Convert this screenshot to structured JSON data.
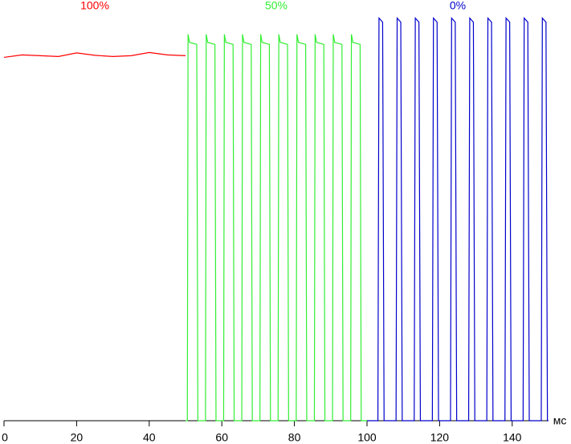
{
  "chart_data": {
    "type": "line",
    "x_label": "мс",
    "xlim": [
      0,
      150
    ],
    "ylim": [
      0,
      100
    ],
    "xticks": [
      0,
      20,
      40,
      60,
      80,
      100,
      120,
      140
    ],
    "series": [
      {
        "name": "100%",
        "color": "#ff0000",
        "x": [
          0,
          5,
          10,
          15,
          20,
          25,
          30,
          35,
          40,
          45,
          50
        ],
        "values": [
          89.8,
          90.4,
          90.2,
          90.0,
          90.9,
          90.3,
          90.0,
          90.2,
          91.0,
          90.4,
          90.2
        ]
      },
      {
        "name": "50%",
        "color": "#33ee33",
        "x": [
          50,
          50.5,
          50.7,
          51.1,
          53.1,
          53.4,
          55.5,
          55.7,
          56.1,
          58.1,
          58.4,
          60.5,
          60.7,
          61.1,
          63.1,
          63.4,
          65.5,
          65.7,
          66.1,
          68.1,
          68.4,
          70.5,
          70.7,
          71.1,
          73.1,
          73.4,
          75.5,
          75.7,
          76.1,
          78.1,
          78.4,
          80.5,
          80.7,
          81.1,
          83.1,
          83.4,
          85.5,
          85.7,
          86.1,
          88.1,
          88.4,
          90.5,
          90.7,
          91.1,
          93.1,
          93.4,
          95.5,
          95.7,
          96.1,
          98.1,
          98.4,
          100
        ],
        "values": [
          0,
          0,
          95.5,
          93.5,
          93,
          0,
          0,
          95.5,
          93.5,
          93,
          0,
          0,
          95.5,
          93.5,
          93,
          0,
          0,
          95.5,
          93.5,
          93,
          0,
          0,
          95.5,
          93.5,
          93,
          0,
          0,
          95.5,
          93.5,
          93,
          0,
          0,
          95.5,
          93.5,
          93,
          0,
          0,
          95.5,
          93.5,
          93,
          0,
          0,
          95.5,
          93.5,
          93,
          0,
          0,
          95.5,
          93.5,
          93,
          0,
          0
        ]
      },
      {
        "name": "0%",
        "color": "#0000cc",
        "x": [
          100,
          103,
          103.3,
          104.3,
          104.7,
          108,
          108.3,
          109.3,
          109.7,
          113,
          113.3,
          114.3,
          114.7,
          118,
          118.3,
          119.3,
          119.7,
          123,
          123.3,
          124.3,
          124.7,
          128,
          128.3,
          129.3,
          129.7,
          133,
          133.3,
          134.3,
          134.7,
          138,
          138.3,
          139.3,
          139.7,
          143,
          143.3,
          144.3,
          144.7,
          148,
          148.3,
          149.3,
          149.7,
          150
        ],
        "values": [
          0,
          0,
          99.5,
          98.5,
          0,
          0,
          99.5,
          98.5,
          0,
          0,
          99.5,
          98.5,
          0,
          0,
          99.5,
          98.5,
          0,
          0,
          99.5,
          98.5,
          0,
          0,
          99.5,
          98.5,
          0,
          0,
          99.5,
          98.5,
          0,
          0,
          99.5,
          98.5,
          0,
          0,
          99.5,
          98.5,
          0,
          0,
          99.5,
          98.5,
          0,
          0
        ]
      }
    ]
  }
}
